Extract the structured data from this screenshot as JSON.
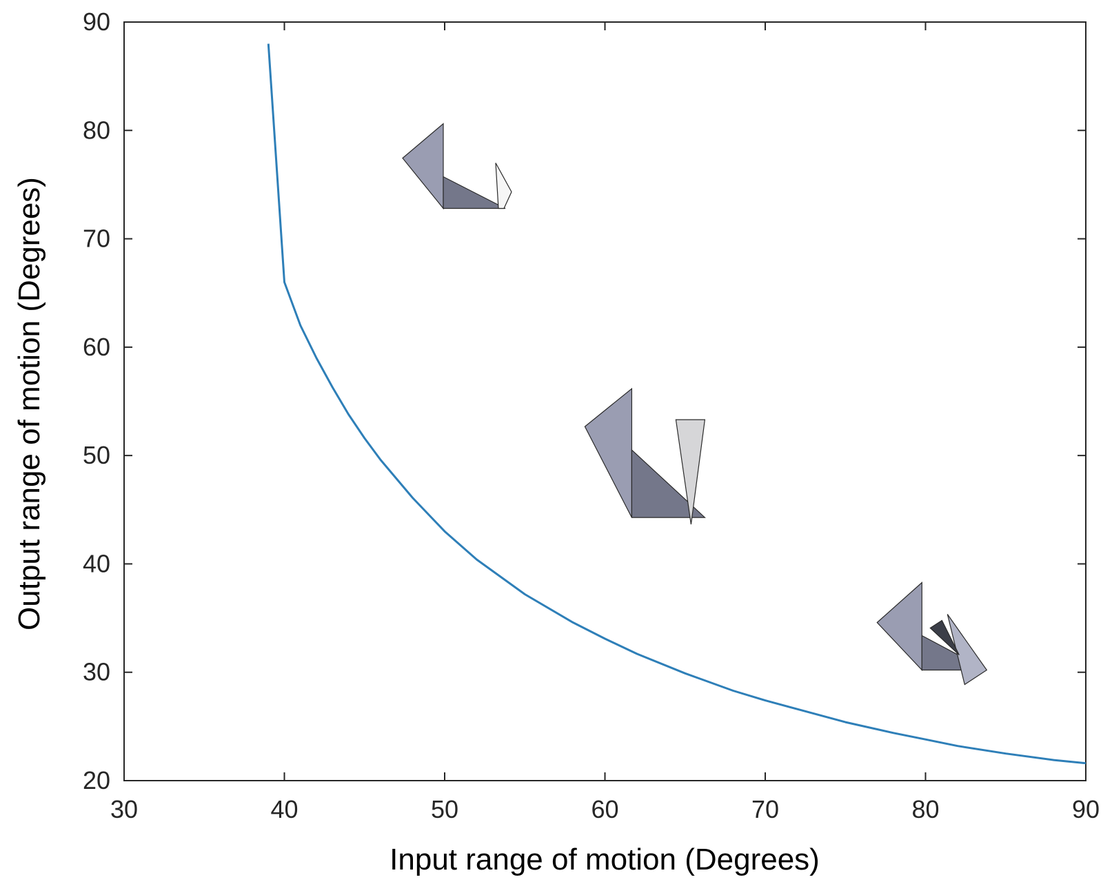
{
  "chart_data": {
    "type": "line",
    "title": "",
    "xlabel": "Input range of motion  (Degrees)",
    "ylabel": "Output range of motion (Degrees)",
    "xlim": [
      30,
      90
    ],
    "ylim": [
      20,
      90
    ],
    "xticks": [
      30,
      40,
      50,
      60,
      70,
      80,
      90
    ],
    "yticks": [
      20,
      30,
      40,
      50,
      60,
      70,
      80,
      90
    ],
    "grid": false,
    "legend": "none",
    "series": [
      {
        "color": "#2E7FB8",
        "x": [
          39,
          40,
          41,
          42,
          43,
          44,
          45,
          46,
          48,
          50,
          52,
          55,
          58,
          60,
          62,
          65,
          68,
          70,
          72,
          75,
          78,
          80,
          82,
          85,
          88,
          90
        ],
        "y": [
          88,
          66,
          62,
          59,
          56.3,
          53.8,
          51.6,
          49.6,
          46.1,
          43.0,
          40.4,
          37.2,
          34.6,
          33.1,
          31.7,
          29.9,
          28.3,
          27.4,
          26.6,
          25.4,
          24.4,
          23.8,
          23.2,
          22.5,
          21.9,
          21.6
        ]
      }
    ],
    "annotations": [
      {
        "type": "mechanism-illustration",
        "x": 50,
        "y": 77
      },
      {
        "type": "mechanism-illustration",
        "x": 61.5,
        "y": 50
      },
      {
        "type": "mechanism-illustration",
        "x": 79,
        "y": 33
      }
    ]
  },
  "colors": {
    "axis": "#262626",
    "line": "#2E7FB8",
    "panel_light": "#9A9DB2",
    "panel_dark": "#74778A"
  }
}
